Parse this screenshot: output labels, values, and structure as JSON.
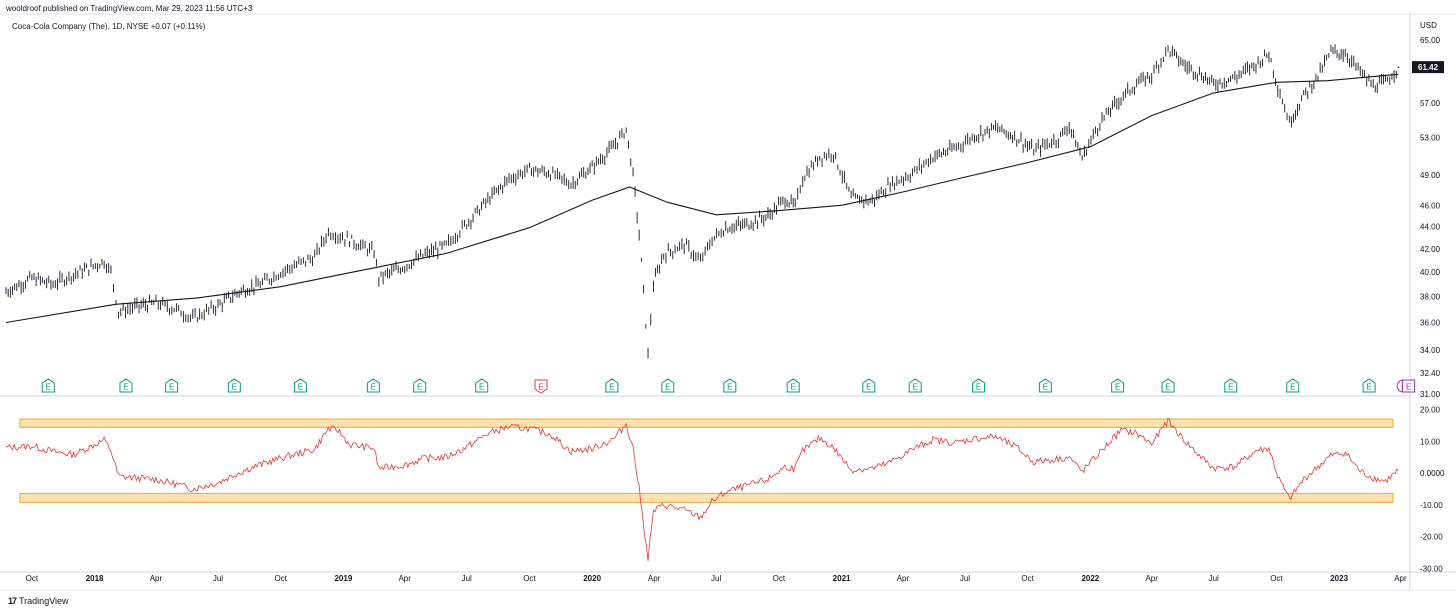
{
  "header": {
    "published_line": "wooldroof published on TradingView.com, Mar 29, 2023 11:56 UTC+3",
    "symbol_line": "Coca-Cola Company (The), 1D, NYSE  +0.07 (+0.11%)"
  },
  "footer": {
    "logo_glyph": "17",
    "brand": "TradingView"
  },
  "colors": {
    "price": "#131722",
    "ma": "#131722",
    "oscillator": "#e53935",
    "band_fill": "#fde3b0",
    "band_stroke": "#f5a623",
    "earnings_green": "#089981",
    "earnings_red": "#f23645",
    "earnings_purple": "#9c27b0",
    "last_price_bg": "#131722"
  },
  "chart_data": [
    {
      "type": "line",
      "title": "Coca-Cola Company (The), 1D, NYSE",
      "y_axis_unit": "USD",
      "y_scale": "log",
      "ylim": [
        31.0,
        67.5
      ],
      "y_ticks": [
        "65.00",
        "57.00",
        "53.00",
        "49.00",
        "46.00",
        "44.00",
        "42.00",
        "40.00",
        "38.00",
        "36.00",
        "34.00",
        "32.40",
        "31.00"
      ],
      "last_price_label": "61.42",
      "x_ticks": [
        "Oct",
        "2018",
        "Apr",
        "Jul",
        "Oct",
        "2019",
        "Apr",
        "Jul",
        "Oct",
        "2020",
        "Apr",
        "Jul",
        "Oct",
        "2021",
        "Apr",
        "Jul",
        "Oct",
        "2022",
        "Apr",
        "Jul",
        "Oct",
        "2023",
        "Apr"
      ],
      "x_tick_dates": [
        "2017-10-01",
        "2018-01-01",
        "2018-04-01",
        "2018-07-01",
        "2018-10-01",
        "2019-01-01",
        "2019-04-01",
        "2019-07-01",
        "2019-10-01",
        "2020-01-01",
        "2020-04-01",
        "2020-07-01",
        "2020-10-01",
        "2021-01-01",
        "2021-04-01",
        "2021-07-01",
        "2021-10-01",
        "2022-01-01",
        "2022-04-01",
        "2022-07-01",
        "2022-10-01",
        "2023-01-01",
        "2023-04-01"
      ],
      "x_range": [
        "2017-08-24",
        "2023-04-15"
      ],
      "series": [
        {
          "style": "bars",
          "x": [
            "2017-08-24",
            "2017-10-01",
            "2017-11-01",
            "2017-12-01",
            "2018-01-15",
            "2018-01-25",
            "2018-02-05",
            "2018-03-01",
            "2018-04-01",
            "2018-05-01",
            "2018-05-25",
            "2018-07-01",
            "2018-08-01",
            "2018-09-01",
            "2018-10-01",
            "2018-11-20",
            "2018-12-10",
            "2018-12-24",
            "2019-01-10",
            "2019-02-15",
            "2019-02-22",
            "2019-04-01",
            "2019-05-01",
            "2019-06-01",
            "2019-07-01",
            "2019-08-01",
            "2019-09-01",
            "2019-10-01",
            "2019-11-01",
            "2019-12-01",
            "2020-01-01",
            "2020-02-01",
            "2020-02-20",
            "2020-03-01",
            "2020-03-10",
            "2020-03-23",
            "2020-03-31",
            "2020-04-15",
            "2020-05-15",
            "2020-06-08",
            "2020-06-25",
            "2020-07-15",
            "2020-08-15",
            "2020-09-15",
            "2020-10-10",
            "2020-10-25",
            "2020-11-05",
            "2020-11-30",
            "2020-12-20",
            "2021-01-15",
            "2021-02-15",
            "2021-03-10",
            "2021-04-15",
            "2021-05-15",
            "2021-06-15",
            "2021-07-15",
            "2021-08-15",
            "2021-09-15",
            "2021-10-10",
            "2021-11-15",
            "2021-12-01",
            "2021-12-20",
            "2022-01-15",
            "2022-02-15",
            "2022-03-10",
            "2022-04-01",
            "2022-04-25",
            "2022-05-20",
            "2022-06-10",
            "2022-07-01",
            "2022-08-01",
            "2022-09-01",
            "2022-09-20",
            "2022-10-03",
            "2022-10-20",
            "2022-11-10",
            "2022-12-01",
            "2022-12-20",
            "2023-01-10",
            "2023-02-01",
            "2023-02-20",
            "2023-03-10",
            "2023-03-29"
          ],
          "values": [
            38.4,
            39.5,
            39.0,
            39.8,
            40.9,
            40.0,
            36.8,
            37.2,
            37.5,
            37.0,
            36.3,
            37.3,
            38.4,
            39.0,
            40.0,
            41.3,
            43.5,
            43.2,
            42.8,
            41.7,
            39.5,
            40.5,
            41.5,
            42.3,
            44.3,
            46.5,
            48.6,
            49.6,
            49.2,
            48.1,
            49.8,
            52.0,
            53.9,
            49.0,
            43.2,
            33.6,
            39.0,
            41.5,
            42.4,
            40.9,
            42.8,
            43.9,
            44.2,
            45.0,
            46.6,
            45.9,
            48.7,
            50.9,
            51.3,
            46.7,
            46.4,
            47.9,
            49.2,
            50.9,
            51.8,
            53.2,
            54.1,
            53.0,
            51.6,
            52.9,
            54.3,
            50.8,
            54.7,
            57.6,
            59.3,
            60.4,
            63.8,
            61.6,
            60.6,
            59.3,
            60.1,
            61.8,
            63.2,
            59.0,
            54.7,
            57.8,
            60.3,
            63.4,
            63.2,
            60.8,
            59.0,
            59.5,
            61.4
          ]
        },
        {
          "name": "",
          "style": "line",
          "x": [
            "2017-08-24",
            "2018-02-01",
            "2018-06-01",
            "2018-10-01",
            "2019-01-15",
            "2019-06-01",
            "2019-10-01",
            "2020-01-01",
            "2020-02-25",
            "2020-04-20",
            "2020-07-01",
            "2020-10-01",
            "2021-01-01",
            "2021-04-01",
            "2021-07-01",
            "2021-10-01",
            "2022-01-01",
            "2022-04-01",
            "2022-07-01",
            "2022-10-01",
            "2022-12-15",
            "2023-03-29"
          ],
          "values": [
            36.0,
            37.4,
            37.9,
            38.8,
            40.0,
            41.6,
            43.9,
            46.5,
            47.8,
            46.3,
            45.1,
            45.5,
            46.0,
            47.3,
            48.8,
            50.3,
            52.0,
            55.5,
            58.2,
            59.5,
            59.7,
            60.5
          ]
        }
      ],
      "earnings_markers": [
        {
          "date": "2017-10-25",
          "label": "E",
          "kind": "green"
        },
        {
          "date": "2018-02-16",
          "label": "E",
          "kind": "green"
        },
        {
          "date": "2018-04-24",
          "label": "E",
          "kind": "green"
        },
        {
          "date": "2018-07-25",
          "label": "E",
          "kind": "green"
        },
        {
          "date": "2018-10-30",
          "label": "E",
          "kind": "green"
        },
        {
          "date": "2019-02-14",
          "label": "E",
          "kind": "green"
        },
        {
          "date": "2019-04-23",
          "label": "E",
          "kind": "green"
        },
        {
          "date": "2019-07-23",
          "label": "E",
          "kind": "green"
        },
        {
          "date": "2019-10-18",
          "label": "E",
          "kind": "red"
        },
        {
          "date": "2020-01-30",
          "label": "E",
          "kind": "green"
        },
        {
          "date": "2020-04-21",
          "label": "E",
          "kind": "green"
        },
        {
          "date": "2020-07-21",
          "label": "E",
          "kind": "green"
        },
        {
          "date": "2020-10-22",
          "label": "E",
          "kind": "green"
        },
        {
          "date": "2021-02-10",
          "label": "E",
          "kind": "green"
        },
        {
          "date": "2021-04-19",
          "label": "E",
          "kind": "green"
        },
        {
          "date": "2021-07-21",
          "label": "E",
          "kind": "green"
        },
        {
          "date": "2021-10-27",
          "label": "E",
          "kind": "green"
        },
        {
          "date": "2022-02-10",
          "label": "E",
          "kind": "green"
        },
        {
          "date": "2022-04-25",
          "label": "E",
          "kind": "green"
        },
        {
          "date": "2022-07-26",
          "label": "E",
          "kind": "green"
        },
        {
          "date": "2022-10-25",
          "label": "E",
          "kind": "green"
        },
        {
          "date": "2023-02-14",
          "label": "E",
          "kind": "green"
        },
        {
          "date": "2023-04-05",
          "label": "⚡",
          "kind": "purple-circle"
        },
        {
          "date": "2023-04-13",
          "label": "E",
          "kind": "purple"
        }
      ]
    },
    {
      "type": "line",
      "y_ticks": [
        "20.00",
        "10.00",
        "0.0000",
        "-10.00",
        "-20.00",
        "-30.00"
      ],
      "ylim": [
        -30.5,
        23
      ],
      "bands": [
        {
          "from": 14.4,
          "to": 17.0
        },
        {
          "from": -9.2,
          "to": -6.4
        }
      ],
      "series": [
        {
          "name": "",
          "x": [
            "2017-08-24",
            "2017-10-01",
            "2017-11-01",
            "2017-12-01",
            "2018-01-15",
            "2018-01-25",
            "2018-02-05",
            "2018-03-01",
            "2018-04-01",
            "2018-05-01",
            "2018-05-25",
            "2018-07-01",
            "2018-08-01",
            "2018-09-01",
            "2018-10-01",
            "2018-11-20",
            "2018-12-10",
            "2018-12-24",
            "2019-01-10",
            "2019-02-15",
            "2019-02-22",
            "2019-04-01",
            "2019-05-01",
            "2019-06-01",
            "2019-07-01",
            "2019-08-01",
            "2019-09-01",
            "2019-10-01",
            "2019-11-01",
            "2019-12-01",
            "2020-01-01",
            "2020-02-01",
            "2020-02-20",
            "2020-03-01",
            "2020-03-10",
            "2020-03-23",
            "2020-03-31",
            "2020-04-15",
            "2020-05-15",
            "2020-06-08",
            "2020-06-25",
            "2020-07-15",
            "2020-08-15",
            "2020-09-15",
            "2020-10-10",
            "2020-10-25",
            "2020-11-05",
            "2020-11-30",
            "2020-12-20",
            "2021-01-15",
            "2021-02-15",
            "2021-03-10",
            "2021-04-15",
            "2021-05-15",
            "2021-06-15",
            "2021-07-15",
            "2021-08-15",
            "2021-09-15",
            "2021-10-10",
            "2021-11-15",
            "2021-12-01",
            "2021-12-20",
            "2022-01-15",
            "2022-02-15",
            "2022-03-10",
            "2022-04-01",
            "2022-04-25",
            "2022-05-20",
            "2022-06-10",
            "2022-07-01",
            "2022-08-01",
            "2022-09-01",
            "2022-09-20",
            "2022-10-03",
            "2022-10-20",
            "2022-11-10",
            "2022-12-01",
            "2022-12-20",
            "2023-01-10",
            "2023-02-01",
            "2023-02-20",
            "2023-03-10",
            "2023-03-29"
          ],
          "values": [
            8.0,
            8.5,
            6.8,
            5.8,
            10.4,
            7.0,
            -1.0,
            -1.5,
            -2.0,
            -3.5,
            -5.0,
            -3.0,
            0.2,
            2.7,
            4.7,
            7.5,
            14.0,
            13.5,
            9.0,
            7.8,
            1.5,
            2.5,
            4.7,
            5.0,
            8.2,
            12.5,
            14.6,
            14.0,
            12.2,
            6.8,
            7.7,
            10.6,
            15.5,
            8.0,
            -5.0,
            -27.0,
            -12.0,
            -10.0,
            -11.6,
            -14.0,
            -9.0,
            -6.0,
            -4.0,
            -2.0,
            2.0,
            1.5,
            7.0,
            11.0,
            8.0,
            1.0,
            1.5,
            3.0,
            7.5,
            10.5,
            9.5,
            10.8,
            11.5,
            8.0,
            3.5,
            4.5,
            5.0,
            0.5,
            6.5,
            13.5,
            12.5,
            9.2,
            16.5,
            10.0,
            5.5,
            1.5,
            2.0,
            7.0,
            7.8,
            -1.0,
            -8.3,
            -2.0,
            2.0,
            5.5,
            6.5,
            0.5,
            -1.5,
            -2.5,
            0.8
          ]
        }
      ]
    }
  ]
}
